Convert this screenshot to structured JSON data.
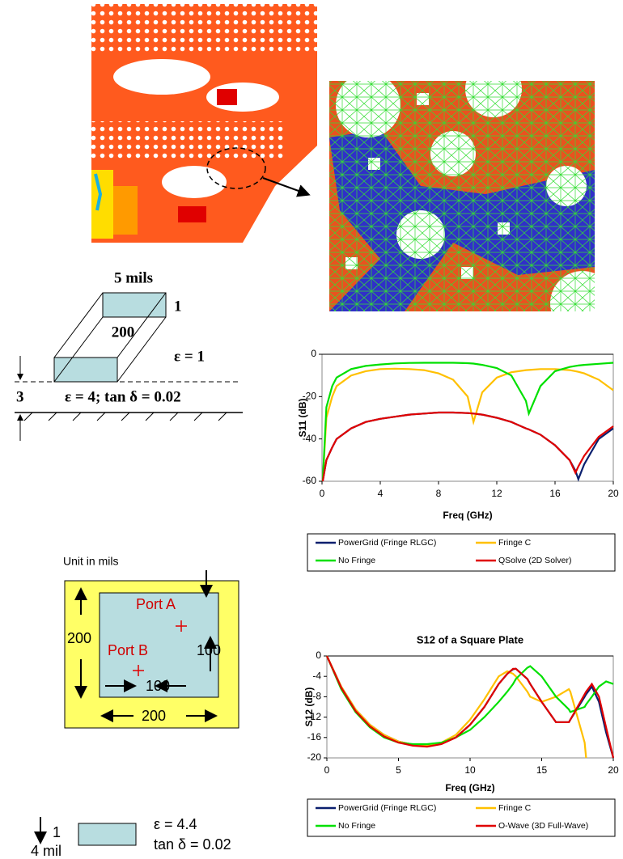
{
  "chart_data": [
    {
      "type": "line",
      "ylabel": "S11 (dB)",
      "xlabel": "Freq (GHz)",
      "x": [
        0.05,
        0.3,
        0.7,
        1,
        2,
        3,
        4,
        5,
        6,
        7,
        8,
        9,
        10,
        10.4,
        11,
        12,
        13,
        14,
        14.2,
        15,
        16,
        17,
        17.4,
        17.6,
        18,
        19,
        20
      ],
      "xlim": [
        0,
        20
      ],
      "xticks": [
        0,
        4,
        8,
        12,
        16,
        20
      ],
      "ylim": [
        -60,
        0
      ],
      "yticks": [
        -60,
        -40,
        -20,
        0
      ],
      "series": [
        {
          "name": "PowerGrid (Fringe RLGC)",
          "color": "#0a1f6e",
          "values": [
            -60,
            -50,
            -44,
            -40,
            -35,
            -32,
            -30.5,
            -29.5,
            -28.5,
            -28,
            -27.5,
            -27.5,
            -27.8,
            -28,
            -28.5,
            -30,
            -32,
            -35,
            -35.5,
            -38,
            -43,
            -50,
            -55,
            -59,
            -52,
            -40,
            -35
          ]
        },
        {
          "name": "Fringe C",
          "color": "#ffc000",
          "values": [
            -60,
            -30,
            -20,
            -15,
            -10,
            -8,
            -7,
            -6.8,
            -7,
            -7.5,
            -9,
            -12,
            -20,
            -32,
            -18,
            -11,
            -8.5,
            -7.5,
            -7.4,
            -7,
            -7,
            -7.5,
            -8,
            -8.3,
            -9,
            -12,
            -17
          ]
        },
        {
          "name": "No Fringe",
          "color": "#00e000",
          "values": [
            -60,
            -25,
            -15,
            -11,
            -7,
            -5.5,
            -4.8,
            -4.3,
            -4.1,
            -4,
            -4,
            -4,
            -4.2,
            -4.4,
            -5,
            -6.5,
            -10,
            -22,
            -28,
            -15,
            -8,
            -6,
            -5.5,
            -5.3,
            -5,
            -4.5,
            -4
          ]
        },
        {
          "name": "QSolve (2D Solver)",
          "color": "#e00000",
          "values": [
            -60,
            -50,
            -44,
            -40,
            -35,
            -32,
            -30.5,
            -29.5,
            -28.5,
            -28,
            -27.5,
            -27.5,
            -27.8,
            -28,
            -28.5,
            -30,
            -32,
            -35,
            -35.5,
            -38,
            -43,
            -50,
            -56,
            -53,
            -48,
            -39,
            -34
          ]
        }
      ]
    },
    {
      "type": "line",
      "title": "S12 of a Square Plate",
      "ylabel": "S12 (dB)",
      "xlabel": "Freq (GHz)",
      "x": [
        0,
        1,
        2,
        3,
        4,
        5,
        6,
        7,
        8,
        9,
        10,
        11,
        12,
        12.6,
        13,
        13.2,
        14,
        14.2,
        15,
        16,
        16.9,
        17,
        18,
        18.1,
        18.5,
        19,
        19.5,
        20
      ],
      "xlim": [
        0,
        20
      ],
      "xticks": [
        0,
        5,
        10,
        15,
        20
      ],
      "ylim": [
        -20,
        0
      ],
      "yticks": [
        -20,
        -16,
        -12,
        -8,
        -4,
        0
      ],
      "series": [
        {
          "name": "PowerGrid (Fringe RLGC)",
          "color": "#0a1f6e",
          "values": [
            0,
            -6,
            -10.5,
            -13.5,
            -15.5,
            -16.8,
            -17.4,
            -17.6,
            -17.2,
            -16,
            -13.5,
            -10,
            -5.5,
            -3.5,
            -2.6,
            -2.5,
            -4.5,
            -5.5,
            -9,
            -13,
            -13,
            -12.5,
            -8,
            -7.5,
            -6,
            -9,
            -15,
            -20
          ]
        },
        {
          "name": "Fringe C",
          "color": "#ffc000",
          "values": [
            0,
            -6,
            -10.5,
            -13.5,
            -15.5,
            -16.8,
            -17.4,
            -17.5,
            -17,
            -15.5,
            -12.5,
            -8.5,
            -4,
            -3,
            -3.5,
            -4,
            -7,
            -8,
            -9,
            -8,
            -6.5,
            -7,
            -17,
            -20,
            null,
            null,
            null,
            null
          ]
        },
        {
          "name": "No Fringe",
          "color": "#00e000",
          "values": [
            0,
            -6.5,
            -11,
            -14,
            -16,
            -17,
            -17.3,
            -17.3,
            -17,
            -16,
            -14.5,
            -12,
            -9,
            -7,
            -5.5,
            -4.5,
            -2.3,
            -2,
            -4,
            -8,
            -10.5,
            -11,
            -10,
            -9.5,
            -8,
            -6,
            -5,
            -5.5
          ]
        },
        {
          "name": "O-Wave (3D Full-Wave)",
          "color": "#e00000",
          "values": [
            0,
            -6.2,
            -10.8,
            -13.8,
            -15.8,
            -17,
            -17.6,
            -17.8,
            -17.3,
            -16,
            -13.5,
            -10,
            -5.5,
            -3.5,
            -2.5,
            -2.5,
            -4.5,
            -5.5,
            -9,
            -13,
            -13,
            -12.5,
            -7.5,
            -7,
            -5.5,
            -8,
            -14,
            -20
          ]
        }
      ]
    }
  ],
  "stack_diagram": {
    "width": "5 mils",
    "thickness": "1",
    "length": "200",
    "top_eps": "ε = 1",
    "gap": "3",
    "substrate": "ε = 4;  tan δ = 0.02"
  },
  "plate_diagram": {
    "unit": "Unit in mils",
    "port_a": "Port A",
    "port_b": "Port B",
    "side": "200",
    "inner_side": "100",
    "port_offset": "100",
    "bottom_side": "200"
  },
  "trace_diagram": {
    "thickness": "1",
    "height": "4 mil",
    "eps": "ε = 4.4",
    "loss": "tan δ = 0.02"
  }
}
